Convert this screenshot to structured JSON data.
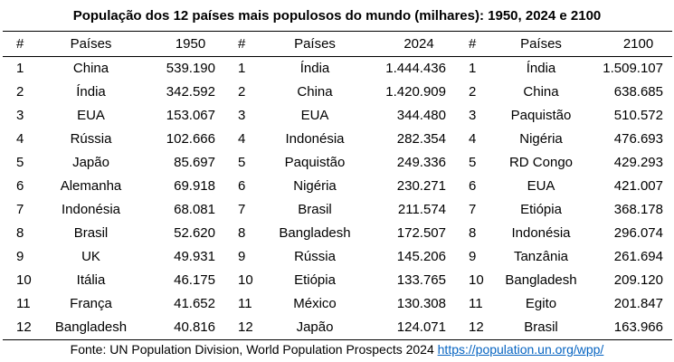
{
  "title": "População dos 12 países mais populosos do mundo (milhares): 1950, 2024 e 2100",
  "headers": [
    "#",
    "Países",
    "1950",
    "#",
    "Países",
    "2024",
    "#",
    "Países",
    "2100"
  ],
  "rows": [
    [
      "1",
      "China",
      "539.190",
      "1",
      "Índia",
      "1.444.436",
      "1",
      "Índia",
      "1.509.107"
    ],
    [
      "2",
      "Índia",
      "342.592",
      "2",
      "China",
      "1.420.909",
      "2",
      "China",
      "638.685"
    ],
    [
      "3",
      "EUA",
      "153.067",
      "3",
      "EUA",
      "344.480",
      "3",
      "Paquistão",
      "510.572"
    ],
    [
      "4",
      "Rússia",
      "102.666",
      "4",
      "Indonésia",
      "282.354",
      "4",
      "Nigéria",
      "476.693"
    ],
    [
      "5",
      "Japão",
      "85.697",
      "5",
      "Paquistão",
      "249.336",
      "5",
      "RD Congo",
      "429.293"
    ],
    [
      "6",
      "Alemanha",
      "69.918",
      "6",
      "Nigéria",
      "230.271",
      "6",
      "EUA",
      "421.007"
    ],
    [
      "7",
      "Indonésia",
      "68.081",
      "7",
      "Brasil",
      "211.574",
      "7",
      "Etiópia",
      "368.178"
    ],
    [
      "8",
      "Brasil",
      "52.620",
      "8",
      "Bangladesh",
      "172.507",
      "8",
      "Indonésia",
      "296.074"
    ],
    [
      "9",
      "UK",
      "49.931",
      "9",
      "Rússia",
      "145.206",
      "9",
      "Tanzânia",
      "261.694"
    ],
    [
      "10",
      "Itália",
      "46.175",
      "10",
      "Etiópia",
      "133.765",
      "10",
      "Bangladesh",
      "209.120"
    ],
    [
      "11",
      "França",
      "41.652",
      "11",
      "México",
      "130.308",
      "11",
      "Egito",
      "201.847"
    ],
    [
      "12",
      "Bangladesh",
      "40.816",
      "12",
      "Japão",
      "124.071",
      "12",
      "Brasil",
      "163.966"
    ]
  ],
  "source": {
    "text": "Fonte: UN Population Division, World Population Prospects 2024 ",
    "link": "https://population.un.org/wpp/"
  }
}
